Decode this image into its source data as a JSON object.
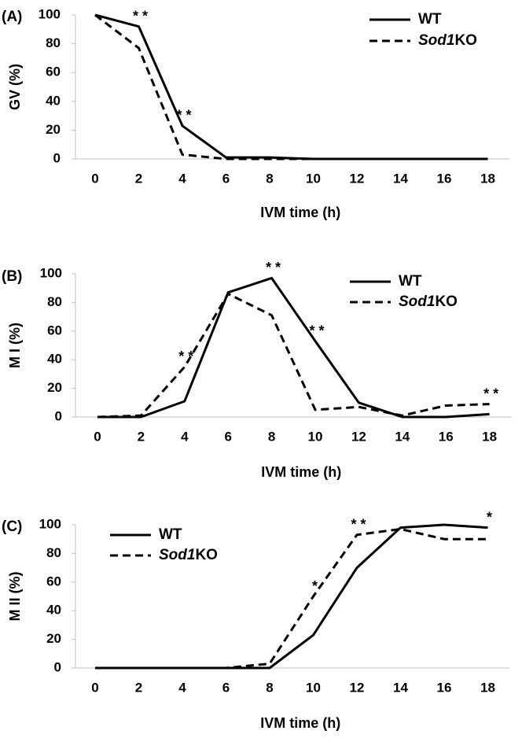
{
  "chart_data": [
    {
      "type": "line",
      "panel_label": "(A)",
      "x": [
        0,
        2,
        4,
        6,
        8,
        10,
        12,
        14,
        16,
        18
      ],
      "xlabel": "IVM time (h)",
      "ylabel": "GV (%)",
      "ylim": [
        0,
        100
      ],
      "yticks": [
        0,
        20,
        40,
        60,
        80,
        100
      ],
      "legend_position": "top-right",
      "series": [
        {
          "name": "WT",
          "legend_plain": "WT",
          "legend_italic": "",
          "style": "solid",
          "values": [
            100,
            92,
            23,
            1,
            1,
            0,
            0,
            0,
            0,
            0
          ]
        },
        {
          "name": "Sod1KO",
          "legend_plain": "KO",
          "legend_italic": "Sod1",
          "style": "dashed",
          "values": [
            100,
            77,
            3,
            0,
            0,
            0,
            0,
            0,
            0,
            0
          ]
        }
      ],
      "annotations": [
        {
          "text": "**",
          "x": 2,
          "y": 92
        },
        {
          "text": "**",
          "x": 4,
          "y": 23
        }
      ]
    },
    {
      "type": "line",
      "panel_label": "(B)",
      "x": [
        0,
        2,
        4,
        6,
        8,
        10,
        12,
        14,
        16,
        18
      ],
      "xlabel": "IVM time (h)",
      "ylabel": "M I (%)",
      "ylim": [
        0,
        100
      ],
      "yticks": [
        0,
        20,
        40,
        60,
        80,
        100
      ],
      "legend_position": "top-right",
      "series": [
        {
          "name": "WT",
          "legend_plain": "WT",
          "legend_italic": "",
          "style": "solid",
          "values": [
            0,
            0,
            11,
            87,
            97,
            53,
            10,
            0,
            0,
            2
          ]
        },
        {
          "name": "Sod1KO",
          "legend_plain": "KO",
          "legend_italic": "Sod1",
          "style": "dashed",
          "values": [
            0,
            1,
            35,
            86,
            71,
            5,
            7,
            1,
            8,
            9
          ]
        }
      ],
      "annotations": [
        {
          "text": "**",
          "x": 4,
          "y": 35
        },
        {
          "text": "**",
          "x": 8,
          "y": 97
        },
        {
          "text": "**",
          "x": 10,
          "y": 53
        },
        {
          "text": "**",
          "x": 18,
          "y": 9
        }
      ]
    },
    {
      "type": "line",
      "panel_label": "(C)",
      "x": [
        0,
        2,
        4,
        6,
        8,
        10,
        12,
        14,
        16,
        18
      ],
      "xlabel": "IVM time (h)",
      "ylabel": "M II (%)",
      "ylim": [
        0,
        100
      ],
      "yticks": [
        0,
        20,
        40,
        60,
        80,
        100
      ],
      "legend_position": "top-left",
      "series": [
        {
          "name": "WT",
          "legend_plain": "WT",
          "legend_italic": "",
          "style": "solid",
          "values": [
            0,
            0,
            0,
            0,
            0,
            23,
            70,
            98,
            100,
            98
          ]
        },
        {
          "name": "Sod1KO",
          "legend_plain": "KO",
          "legend_italic": "Sod1",
          "style": "dashed",
          "values": [
            0,
            0,
            0,
            0,
            3,
            50,
            93,
            97,
            90,
            90
          ]
        }
      ],
      "annotations": [
        {
          "text": "*",
          "x": 10,
          "y": 50
        },
        {
          "text": "**",
          "x": 12,
          "y": 93
        },
        {
          "text": "*",
          "x": 18,
          "y": 98
        }
      ]
    }
  ]
}
